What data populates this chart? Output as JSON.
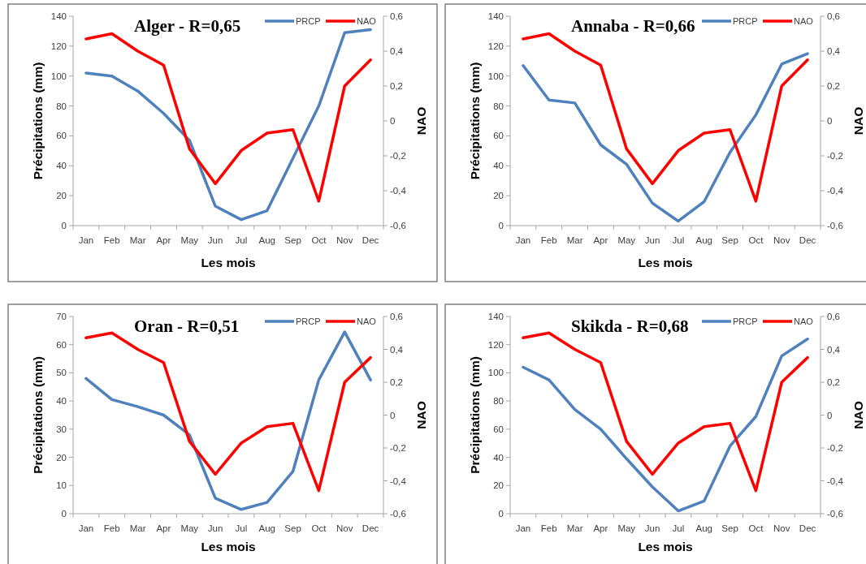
{
  "chart_data": [
    {
      "type": "line",
      "title": "Alger - R=0,65",
      "xlabel": "Les mois",
      "ylabel": "Précipitations (mm)",
      "y2label": "NAO",
      "legend": "top right",
      "categories": [
        "Jan",
        "Feb",
        "Mar",
        "Apr",
        "May",
        "Jun",
        "Jul",
        "Aug",
        "Sep",
        "Oct",
        "Nov",
        "Dec"
      ],
      "series": [
        {
          "name": "PRCP",
          "color": "#4f81bd",
          "values": [
            102,
            100,
            90,
            75,
            57,
            13,
            4,
            10,
            45,
            80,
            129,
            131
          ]
        },
        {
          "name": "NAO",
          "color": "#ff0000",
          "axis": "y2",
          "values": [
            0.47,
            0.5,
            0.4,
            0.32,
            -0.16,
            -0.36,
            -0.17,
            -0.07,
            -0.05,
            -0.46,
            0.2,
            0.35
          ]
        }
      ],
      "ylim": [
        0,
        140
      ],
      "yticks": [
        0,
        20,
        40,
        60,
        80,
        100,
        120,
        140
      ],
      "y2lim": [
        -0.6,
        0.6
      ],
      "y2ticks": [
        {
          "value": -0.6,
          "label": "-0,6"
        },
        {
          "value": -0.4,
          "label": "-0,4"
        },
        {
          "value": -0.2,
          "label": "-0,2"
        },
        {
          "value": 0,
          "label": "0"
        },
        {
          "value": 0.2,
          "label": "0,2"
        },
        {
          "value": 0.4,
          "label": "0,4"
        },
        {
          "value": 0.6,
          "label": "0,6"
        }
      ]
    },
    {
      "type": "line",
      "title": "Annaba - R=0,66",
      "xlabel": "Les mois",
      "ylabel": "Précipitations (mm)",
      "y2label": "NAO",
      "legend": "top right",
      "categories": [
        "Jan",
        "Feb",
        "Mar",
        "Apr",
        "May",
        "Jun",
        "Jul",
        "Aug",
        "Sep",
        "Oct",
        "Nov",
        "Dec"
      ],
      "series": [
        {
          "name": "PRCP",
          "color": "#4f81bd",
          "values": [
            107,
            84,
            82,
            54,
            41,
            15,
            3,
            16,
            49,
            74,
            108,
            115
          ]
        },
        {
          "name": "NAO",
          "color": "#ff0000",
          "axis": "y2",
          "values": [
            0.47,
            0.5,
            0.4,
            0.32,
            -0.16,
            -0.36,
            -0.17,
            -0.07,
            -0.05,
            -0.46,
            0.2,
            0.35
          ]
        }
      ],
      "ylim": [
        0,
        140
      ],
      "yticks": [
        0,
        20,
        40,
        60,
        80,
        100,
        120,
        140
      ],
      "y2lim": [
        -0.6,
        0.6
      ],
      "y2ticks": [
        {
          "value": -0.6,
          "label": "-0,6"
        },
        {
          "value": -0.4,
          "label": "-0,4"
        },
        {
          "value": -0.2,
          "label": "-0,2"
        },
        {
          "value": 0,
          "label": "0"
        },
        {
          "value": 0.2,
          "label": "0,2"
        },
        {
          "value": 0.4,
          "label": "0,4"
        },
        {
          "value": 0.6,
          "label": "0,6"
        }
      ]
    },
    {
      "type": "line",
      "title": "Oran - R=0,51",
      "xlabel": "Les mois",
      "ylabel": "Précipitations (mm)",
      "y2label": "NAO",
      "legend": "top right",
      "categories": [
        "Jan",
        "Feb",
        "Mar",
        "Apr",
        "May",
        "Jun",
        "Jul",
        "Aug",
        "Sep",
        "Oct",
        "Nov",
        "Dec"
      ],
      "series": [
        {
          "name": "PRCP",
          "color": "#4f81bd",
          "values": [
            48,
            40.5,
            38,
            35,
            28,
            5.5,
            1.5,
            4,
            15,
            47.5,
            64.5,
            47.5
          ]
        },
        {
          "name": "NAO",
          "color": "#ff0000",
          "axis": "y2",
          "values": [
            0.47,
            0.5,
            0.4,
            0.32,
            -0.16,
            -0.36,
            -0.17,
            -0.07,
            -0.05,
            -0.46,
            0.2,
            0.35
          ]
        }
      ],
      "ylim": [
        0,
        70
      ],
      "yticks": [
        0,
        10,
        20,
        30,
        40,
        50,
        60,
        70
      ],
      "y2lim": [
        -0.6,
        0.6
      ],
      "y2ticks": [
        {
          "value": -0.6,
          "label": "-0,6"
        },
        {
          "value": -0.4,
          "label": "-0,4"
        },
        {
          "value": -0.2,
          "label": "-0,2"
        },
        {
          "value": 0,
          "label": "0"
        },
        {
          "value": 0.2,
          "label": "0,2"
        },
        {
          "value": 0.4,
          "label": "0,4"
        },
        {
          "value": 0.6,
          "label": "0,6"
        }
      ]
    },
    {
      "type": "line",
      "title": "Skikda - R=0,68",
      "xlabel": "Les mois",
      "ylabel": "Précipitations (mm)",
      "y2label": "NAO",
      "legend": "top right",
      "categories": [
        "Jan",
        "Feb",
        "Mar",
        "Apr",
        "May",
        "Jun",
        "Jul",
        "Aug",
        "Sep",
        "Oct",
        "Nov",
        "Dec"
      ],
      "series": [
        {
          "name": "PRCP",
          "color": "#4f81bd",
          "values": [
            104,
            95,
            74,
            60,
            39,
            19,
            2,
            9,
            48,
            69,
            112,
            124
          ]
        },
        {
          "name": "NAO",
          "color": "#ff0000",
          "axis": "y2",
          "values": [
            0.47,
            0.5,
            0.4,
            0.32,
            -0.16,
            -0.36,
            -0.17,
            -0.07,
            -0.05,
            -0.46,
            0.2,
            0.35
          ]
        }
      ],
      "ylim": [
        0,
        140
      ],
      "yticks": [
        0,
        20,
        40,
        60,
        80,
        100,
        120,
        140
      ],
      "y2lim": [
        -0.6,
        0.6
      ],
      "y2ticks": [
        {
          "value": -0.6,
          "label": "-0,6"
        },
        {
          "value": -0.4,
          "label": "-0,4"
        },
        {
          "value": -0.2,
          "label": "-0,2"
        },
        {
          "value": 0,
          "label": "0"
        },
        {
          "value": 0.2,
          "label": "0,2"
        },
        {
          "value": 0.4,
          "label": "0,4"
        },
        {
          "value": 0.6,
          "label": "0,6"
        }
      ]
    }
  ]
}
